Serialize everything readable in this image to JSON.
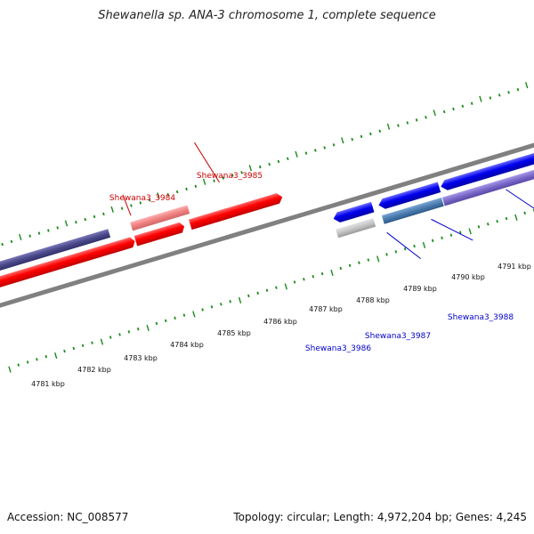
{
  "title": "Shewanella sp. ANA-3 chromosome 1, complete sequence",
  "footer": {
    "accession": "Accession: NC_008577",
    "summary": "Topology: circular; Length: 4,972,204 bp; Genes: 4,245"
  },
  "colors": {
    "backbone": "#808080",
    "tick": "#1a8a1a",
    "forward_cds": "#ff0000",
    "reverse_cds": "#0000ee",
    "forward_label": "#cc0000",
    "reverse_label": "#0000cc"
  },
  "kbp_ticks": [
    {
      "label": "4781 kbp"
    },
    {
      "label": "4782 kbp"
    },
    {
      "label": "4783 kbp"
    },
    {
      "label": "4784 kbp"
    },
    {
      "label": "4785 kbp"
    },
    {
      "label": "4786 kbp"
    },
    {
      "label": "4787 kbp"
    },
    {
      "label": "4788 kbp"
    },
    {
      "label": "4789 kbp"
    },
    {
      "label": "4790 kbp"
    },
    {
      "label": "4791 kbp"
    }
  ],
  "gene_labels": [
    {
      "text": "Shewana3_3984",
      "strand": "forward"
    },
    {
      "text": "Shewana3_3985",
      "strand": "forward"
    },
    {
      "text": "Shewana3_3986",
      "strand": "reverse"
    },
    {
      "text": "Shewana3_3987",
      "strand": "reverse"
    },
    {
      "text": "Shewana3_3988",
      "strand": "reverse"
    }
  ]
}
